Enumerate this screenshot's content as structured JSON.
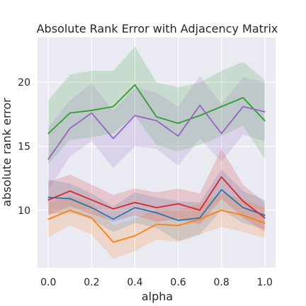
{
  "chart_data": {
    "type": "line",
    "title": "Absolute Rank Error with Adjacency Matrix",
    "xlabel": "alpha",
    "ylabel": "absolute rank error",
    "xlim": [
      -0.05,
      1.05
    ],
    "ylim": [
      5.5,
      23.5
    ],
    "xticks": [
      0.0,
      0.2,
      0.4,
      0.6,
      0.8,
      1.0
    ],
    "xtick_labels": [
      "0.0",
      "0.2",
      "0.4",
      "0.6",
      "0.8",
      "1.0"
    ],
    "yticks": [
      10,
      15,
      20
    ],
    "ytick_labels": [
      "10",
      "15",
      "20"
    ],
    "grid": true,
    "background": "#eaeaf2",
    "x": [
      0.0,
      0.1,
      0.2,
      0.3,
      0.4,
      0.5,
      0.6,
      0.7,
      0.8,
      0.9,
      1.0
    ],
    "series": [
      {
        "color": "#1f77b4",
        "values": [
          11.0,
          10.9,
          10.2,
          9.3,
          10.2,
          9.8,
          9.2,
          9.4,
          11.6,
          10.2,
          9.6
        ],
        "lower": [
          9.7,
          9.8,
          9.3,
          8.3,
          9.0,
          8.6,
          7.6,
          8.1,
          10.0,
          9.0,
          8.5
        ],
        "upper": [
          12.4,
          12.1,
          11.3,
          10.3,
          11.4,
          11.0,
          10.7,
          10.6,
          13.2,
          11.5,
          10.8
        ]
      },
      {
        "color": "#ff7f0e",
        "values": [
          9.3,
          10.0,
          9.4,
          7.5,
          8.0,
          8.9,
          8.8,
          9.3,
          10.0,
          9.6,
          9.0
        ],
        "lower": [
          7.9,
          8.8,
          8.1,
          6.2,
          6.8,
          7.7,
          7.5,
          8.1,
          8.7,
          8.3,
          7.8
        ],
        "upper": [
          10.6,
          11.1,
          10.6,
          8.8,
          9.3,
          10.1,
          10.0,
          10.5,
          11.3,
          10.9,
          10.2
        ]
      },
      {
        "color": "#2ca02c",
        "values": [
          16.0,
          17.6,
          17.8,
          18.1,
          19.8,
          17.3,
          16.8,
          17.4,
          18.1,
          18.8,
          17.0
        ],
        "lower": [
          13.6,
          15.5,
          15.7,
          16.0,
          17.4,
          15.1,
          14.6,
          15.1,
          15.8,
          16.6,
          14.0
        ],
        "upper": [
          18.6,
          20.6,
          20.9,
          20.9,
          22.8,
          20.0,
          19.6,
          20.0,
          20.9,
          21.6,
          20.2
        ]
      },
      {
        "color": "#d62728",
        "values": [
          10.8,
          11.5,
          10.8,
          10.1,
          10.6,
          10.2,
          10.5,
          10.0,
          12.6,
          10.7,
          9.4
        ],
        "lower": [
          9.6,
          10.3,
          9.7,
          9.1,
          9.6,
          9.1,
          9.3,
          8.9,
          10.9,
          9.4,
          8.3
        ],
        "upper": [
          12.2,
          12.8,
          12.0,
          11.2,
          11.7,
          11.4,
          11.7,
          11.3,
          14.8,
          12.0,
          10.6
        ]
      },
      {
        "color": "#9467bd",
        "values": [
          14.0,
          16.4,
          17.6,
          15.6,
          17.4,
          17.0,
          15.8,
          18.2,
          16.0,
          18.1,
          17.7
        ],
        "lower": [
          11.6,
          14.2,
          15.4,
          13.3,
          15.0,
          14.8,
          13.5,
          15.6,
          13.8,
          15.9,
          15.4
        ],
        "upper": [
          16.5,
          18.6,
          19.9,
          17.8,
          19.6,
          19.2,
          18.1,
          20.5,
          18.3,
          20.4,
          20.0
        ]
      }
    ]
  }
}
